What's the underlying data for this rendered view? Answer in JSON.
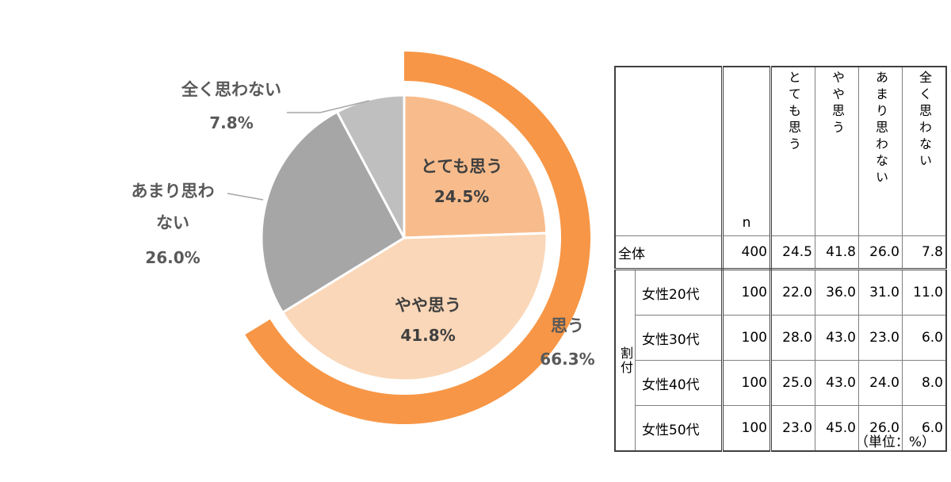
{
  "chart_data": [
    {
      "type": "pie",
      "slices": [
        {
          "label": "とても思う",
          "value": 24.5,
          "value_text": "24.5%",
          "color": "#F8BC8C"
        },
        {
          "label": "やや思う",
          "value": 41.8,
          "value_text": "41.8%",
          "color": "#FAD7B8"
        },
        {
          "label_lines": [
            "あまり思わ",
            "ない"
          ],
          "value": 26.0,
          "value_text": "26.0%",
          "color": "#A6A6A6"
        },
        {
          "label": "全く思わない",
          "value": 7.8,
          "value_text": "7.8%",
          "color": "#BFBFBF"
        }
      ],
      "outer_ring": {
        "label": "思う",
        "value": 66.3,
        "value_text": "66.3%",
        "color": "#F79646"
      }
    },
    {
      "type": "table",
      "unit_note": "（単位：%）",
      "columns": [
        "n",
        "とても思う",
        "やや思う",
        "あまり思わない",
        "全く思わない"
      ],
      "total_row": {
        "label": "全体",
        "values": [
          "400",
          "24.5",
          "41.8",
          "26.0",
          "7.8"
        ]
      },
      "group_label": "割付",
      "rows": [
        {
          "label": "女性20代",
          "values": [
            "100",
            "22.0",
            "36.0",
            "31.0",
            "11.0"
          ]
        },
        {
          "label": "女性30代",
          "values": [
            "100",
            "28.0",
            "43.0",
            "23.0",
            "6.0"
          ]
        },
        {
          "label": "女性40代",
          "values": [
            "100",
            "25.0",
            "43.0",
            "24.0",
            "8.0"
          ]
        },
        {
          "label": "女性50代",
          "values": [
            "100",
            "23.0",
            "45.0",
            "26.0",
            "6.0"
          ]
        }
      ]
    }
  ]
}
